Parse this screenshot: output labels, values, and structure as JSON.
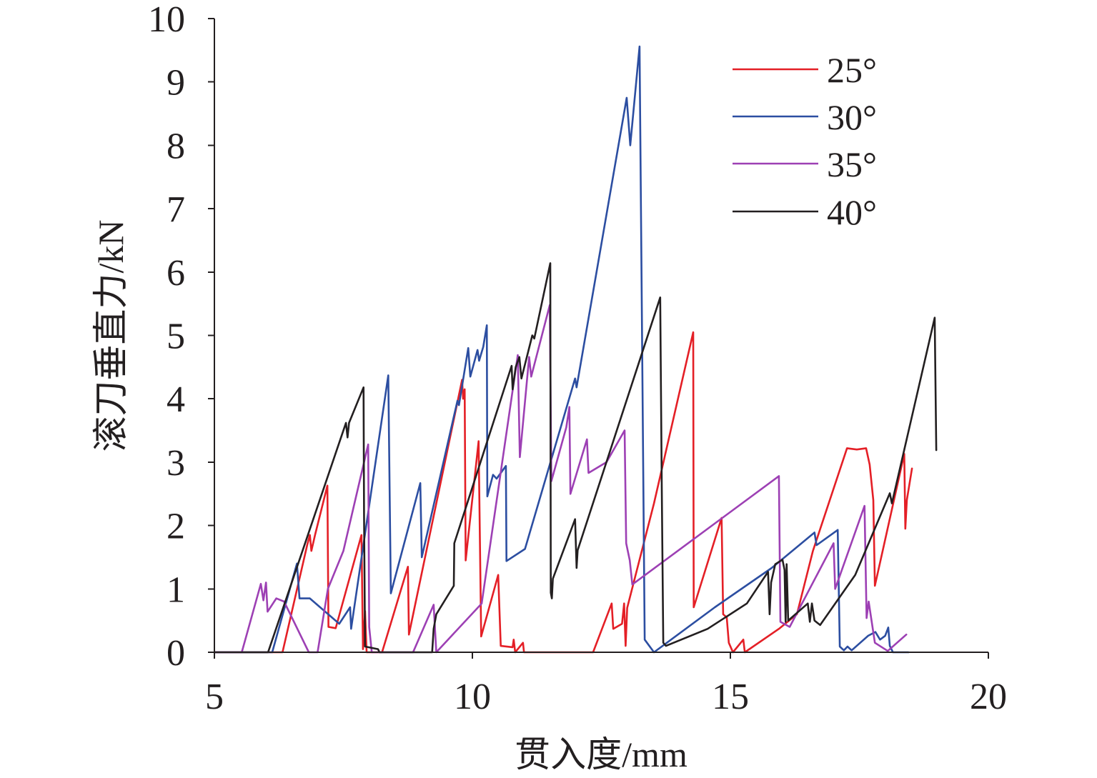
{
  "chart_data": {
    "type": "line",
    "xlabel": "贯入度/mm",
    "ylabel": "滚刀垂直力/kN",
    "xlim": [
      5,
      20
    ],
    "ylim": [
      0,
      10
    ],
    "xticks": [
      5,
      10,
      15,
      20
    ],
    "yticks": [
      0,
      1,
      2,
      3,
      4,
      5,
      6,
      7,
      8,
      9,
      10
    ],
    "grid": false,
    "legend_position": "top-right",
    "series": [
      {
        "name": "25°",
        "color": "#e41f26",
        "points": [
          [
            5,
            0
          ],
          [
            6.32,
            0
          ],
          [
            6.8,
            1.7
          ],
          [
            6.85,
            1.85
          ],
          [
            6.88,
            1.6
          ],
          [
            6.95,
            1.85
          ],
          [
            7.19,
            2.63
          ],
          [
            7.21,
            0.4
          ],
          [
            7.35,
            0.38
          ],
          [
            7.85,
            1.85
          ],
          [
            7.88,
            0.05
          ],
          [
            7.92,
            0.65
          ],
          [
            7.95,
            0
          ],
          [
            8.25,
            0
          ],
          [
            8.75,
            1.35
          ],
          [
            8.77,
            0.28
          ],
          [
            9.8,
            4.3
          ],
          [
            9.82,
            4.0
          ],
          [
            9.85,
            4.15
          ],
          [
            9.87,
            1.45
          ],
          [
            10.12,
            3.33
          ],
          [
            10.17,
            0.25
          ],
          [
            10.5,
            1.22
          ],
          [
            10.55,
            0.1
          ],
          [
            10.78,
            0.08
          ],
          [
            10.8,
            0.2
          ],
          [
            10.83,
            0
          ],
          [
            10.98,
            0.15
          ],
          [
            11.0,
            0
          ],
          [
            12.34,
            0
          ],
          [
            12.7,
            0.77
          ],
          [
            12.73,
            0.37
          ],
          [
            12.9,
            0.45
          ],
          [
            12.94,
            0.77
          ],
          [
            12.97,
            0.1
          ],
          [
            13.0,
            0.7
          ],
          [
            13.52,
            2.35
          ],
          [
            14.28,
            5.05
          ],
          [
            14.29,
            0.71
          ],
          [
            14.83,
            2.12
          ],
          [
            14.86,
            0.6
          ],
          [
            14.93,
            0.55
          ],
          [
            14.97,
            0.15
          ],
          [
            15.05,
            0
          ],
          [
            15.25,
            0.2
          ],
          [
            15.28,
            0
          ],
          [
            15.94,
            0.37
          ],
          [
            16.29,
            0.6
          ],
          [
            16.6,
            1.6
          ],
          [
            17.26,
            3.22
          ],
          [
            17.45,
            3.2
          ],
          [
            17.63,
            3.22
          ],
          [
            17.7,
            2.96
          ],
          [
            17.77,
            2.4
          ],
          [
            17.8,
            1.05
          ],
          [
            18.37,
            3.13
          ],
          [
            18.39,
            1.95
          ],
          [
            18.42,
            2.4
          ],
          [
            18.52,
            2.9
          ]
        ]
      },
      {
        "name": "30°",
        "color": "#2c4ea1",
        "points": [
          [
            5,
            0
          ],
          [
            6.12,
            0
          ],
          [
            6.6,
            1.4
          ],
          [
            6.65,
            0.85
          ],
          [
            6.85,
            0.85
          ],
          [
            7.42,
            0.45
          ],
          [
            7.63,
            0.71
          ],
          [
            7.65,
            0.37
          ],
          [
            8.37,
            4.37
          ],
          [
            8.42,
            0.93
          ],
          [
            8.99,
            2.67
          ],
          [
            9.02,
            1.5
          ],
          [
            9.71,
            3.97
          ],
          [
            9.74,
            3.9
          ],
          [
            9.92,
            4.8
          ],
          [
            9.96,
            4.35
          ],
          [
            10.1,
            4.77
          ],
          [
            10.13,
            4.6
          ],
          [
            10.21,
            4.82
          ],
          [
            10.28,
            5.16
          ],
          [
            10.29,
            2.46
          ],
          [
            10.4,
            2.8
          ],
          [
            10.47,
            2.74
          ],
          [
            10.65,
            2.94
          ],
          [
            10.66,
            1.44
          ],
          [
            11.02,
            1.63
          ],
          [
            11.99,
            4.32
          ],
          [
            12.02,
            4.18
          ],
          [
            12.99,
            8.75
          ],
          [
            13.06,
            8.0
          ],
          [
            13.24,
            9.56
          ],
          [
            13.34,
            0.2
          ],
          [
            13.52,
            0
          ],
          [
            14.7,
            0.71
          ],
          [
            15.8,
            1.33
          ],
          [
            16.63,
            1.89
          ],
          [
            16.67,
            1.69
          ],
          [
            17.08,
            1.93
          ],
          [
            17.12,
            0.09
          ],
          [
            17.2,
            0.03
          ],
          [
            17.27,
            0.09
          ],
          [
            17.35,
            0.03
          ],
          [
            17.67,
            0.26
          ],
          [
            17.81,
            0.32
          ],
          [
            17.9,
            0.2
          ],
          [
            18.0,
            0.26
          ],
          [
            18.06,
            0.39
          ],
          [
            18.09,
            0.1
          ],
          [
            18.15,
            0
          ],
          [
            18.45,
            0
          ]
        ]
      },
      {
        "name": "35°",
        "color": "#9d40b4",
        "points": [
          [
            5,
            0
          ],
          [
            5.53,
            0
          ],
          [
            5.9,
            1.08
          ],
          [
            5.95,
            0.82
          ],
          [
            6.0,
            1.1
          ],
          [
            6.03,
            0.64
          ],
          [
            6.2,
            0.85
          ],
          [
            6.35,
            0.8
          ],
          [
            6.83,
            0
          ],
          [
            7.0,
            0
          ],
          [
            7.2,
            1.0
          ],
          [
            7.5,
            1.6
          ],
          [
            7.98,
            3.28
          ],
          [
            8.0,
            0.4
          ],
          [
            8.05,
            0
          ],
          [
            8.85,
            0
          ],
          [
            9.25,
            0.75
          ],
          [
            9.3,
            0
          ],
          [
            10.18,
            0.77
          ],
          [
            10.88,
            4.69
          ],
          [
            10.92,
            3.08
          ],
          [
            11.1,
            4.66
          ],
          [
            11.14,
            4.35
          ],
          [
            11.5,
            5.48
          ],
          [
            11.53,
            2.7
          ],
          [
            11.82,
            3.55
          ],
          [
            11.88,
            3.87
          ],
          [
            11.9,
            2.5
          ],
          [
            12.22,
            3.36
          ],
          [
            12.25,
            2.83
          ],
          [
            12.6,
            3.0
          ],
          [
            12.95,
            3.5
          ],
          [
            12.98,
            1.72
          ],
          [
            13.05,
            1.45
          ],
          [
            13.1,
            1.07
          ],
          [
            15.94,
            2.78
          ],
          [
            15.97,
            0.48
          ],
          [
            16.15,
            0.4
          ],
          [
            17.0,
            1.72
          ],
          [
            17.03,
            1.0
          ],
          [
            17.6,
            2.31
          ],
          [
            17.64,
            0.54
          ],
          [
            17.68,
            0.8
          ],
          [
            17.8,
            0.15
          ],
          [
            18.05,
            0.02
          ],
          [
            18.41,
            0.28
          ]
        ]
      },
      {
        "name": "40°",
        "color": "#231f20",
        "points": [
          [
            5,
            0
          ],
          [
            6.04,
            0
          ],
          [
            7.55,
            3.62
          ],
          [
            7.58,
            3.39
          ],
          [
            7.61,
            3.62
          ],
          [
            7.89,
            4.18
          ],
          [
            7.9,
            2.18
          ],
          [
            7.92,
            0.09
          ],
          [
            8.17,
            0.05
          ],
          [
            8.2,
            0
          ],
          [
            9.22,
            0
          ],
          [
            9.25,
            0.37
          ],
          [
            9.3,
            0.6
          ],
          [
            9.64,
            1.05
          ],
          [
            9.65,
            1.72
          ],
          [
            10.76,
            4.52
          ],
          [
            10.78,
            4.15
          ],
          [
            10.84,
            4.5
          ],
          [
            10.91,
            4.66
          ],
          [
            10.95,
            4.32
          ],
          [
            11.16,
            5.0
          ],
          [
            11.2,
            4.95
          ],
          [
            11.51,
            6.14
          ],
          [
            11.52,
            0.94
          ],
          [
            11.54,
            0.85
          ],
          [
            11.56,
            1.16
          ],
          [
            11.99,
            2.1
          ],
          [
            12.02,
            1.33
          ],
          [
            12.04,
            1.61
          ],
          [
            13.64,
            5.6
          ],
          [
            13.67,
            2.6
          ],
          [
            13.7,
            0.15
          ],
          [
            13.75,
            0.1
          ],
          [
            14.56,
            0.37
          ],
          [
            15.32,
            0.77
          ],
          [
            15.73,
            1.27
          ],
          [
            15.76,
            0.6
          ],
          [
            15.79,
            1.1
          ],
          [
            15.87,
            1.39
          ],
          [
            16.01,
            1.46
          ],
          [
            16.05,
            1.3
          ],
          [
            16.07,
            0.48
          ],
          [
            16.09,
            1.39
          ],
          [
            16.12,
            0.5
          ],
          [
            16.5,
            0.77
          ],
          [
            16.54,
            0.48
          ],
          [
            16.58,
            0.77
          ],
          [
            16.63,
            0.5
          ],
          [
            16.74,
            0.43
          ],
          [
            17.42,
            1.22
          ],
          [
            18.09,
            2.51
          ],
          [
            18.13,
            2.35
          ],
          [
            18.96,
            5.28
          ],
          [
            18.99,
            3.19
          ]
        ]
      }
    ]
  }
}
